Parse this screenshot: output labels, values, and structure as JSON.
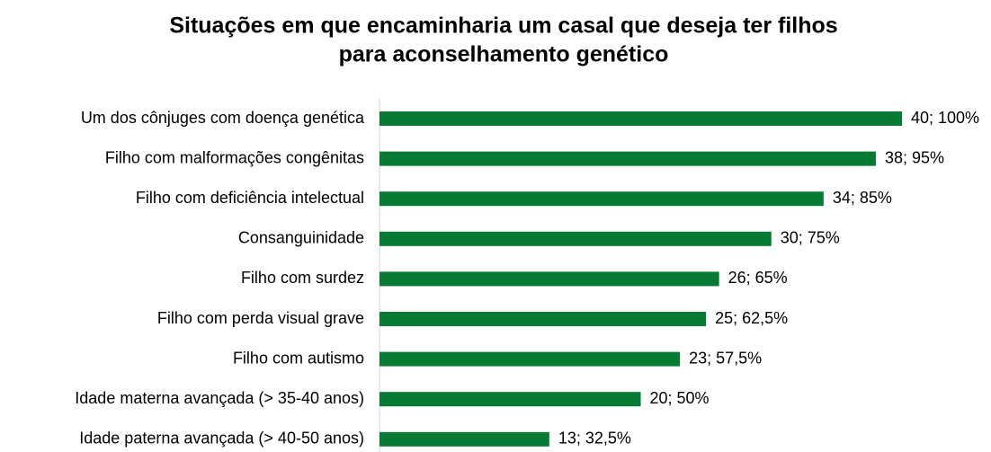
{
  "chart_data": {
    "type": "barh",
    "title": [
      "Situações em que encaminharia um casal que deseja ter filhos",
      "para aconselhamento genético"
    ],
    "categories": [
      "Um dos cônjuges com doença genética",
      "Filho com malformações congênitas",
      "Filho com deficiência intelectual",
      "Consanguinidade",
      "Filho com surdez",
      "Filho com perda visual grave",
      "Filho com autismo",
      "Idade materna avançada (> 35-40 anos)",
      "Idade paterna avançada (> 40-50 anos)"
    ],
    "values": [
      40,
      38,
      34,
      30,
      26,
      25,
      23,
      20,
      13
    ],
    "value_labels": [
      "40; 100%",
      "38; 95%",
      "34; 85%",
      "30; 75%",
      "26; 65%",
      "25; 62,5%",
      "23; 57,5%",
      "20; 50%",
      "13; 32,5%"
    ],
    "color": "#077a34"
  }
}
